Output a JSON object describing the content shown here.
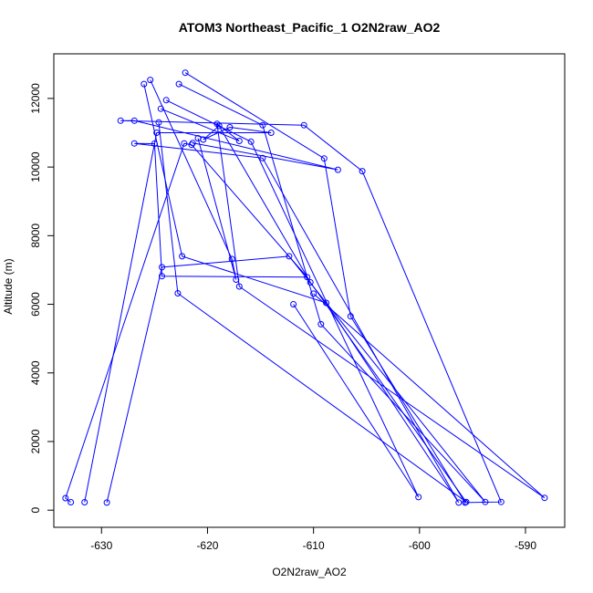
{
  "chart_data": {
    "type": "line",
    "title": "ATOM3 Northeast_Pacific_1 O2N2raw_AO2",
    "xlabel": "O2N2raw_AO2",
    "ylabel": "Altitude (m)",
    "xlim": [
      -634.5,
      -586.3
    ],
    "ylim": [
      -500,
      13300
    ],
    "x_ticks": [
      -630,
      -620,
      -610,
      -600,
      -590
    ],
    "x_tick_labels": [
      "-630",
      "-620",
      "-610",
      "-600",
      "-590"
    ],
    "y_ticks": [
      0,
      2000,
      4000,
      6000,
      8000,
      10000,
      12000
    ],
    "y_tick_labels": [
      "0",
      "2000",
      "4000",
      "6000",
      "8000",
      "10000",
      "12000"
    ],
    "grid": false,
    "series_color": "#0000ff",
    "marker": "open-circle",
    "series": [
      {
        "x": [
          -622.1,
          -609.0,
          -606.5,
          -595.7,
          -592.3,
          -605.4,
          -610.9,
          -628.2,
          -626.9,
          -607.7,
          -621.4
        ],
        "y": [
          12750,
          10250,
          5650,
          220,
          240,
          9880,
          11220,
          11350,
          11350,
          9920,
          10700
        ]
      },
      {
        "x": [
          -623.9,
          -615.9,
          -600.1,
          -611.9
        ],
        "y": [
          11950,
          10740,
          380,
          6000
        ]
      },
      {
        "x": [
          -625.4,
          -617.7,
          -617.3,
          -620.9
        ],
        "y": [
          12540,
          7320,
          6720,
          10840
        ]
      },
      {
        "x": [
          -626.0,
          -622.4,
          -608.8,
          -596.3,
          -614.8,
          -626.9,
          -625.0,
          -624.3,
          -610.6,
          -621.5,
          -622.2,
          -633.4,
          -632.9
        ],
        "y": [
          12420,
          7400,
          6040,
          220,
          10260,
          10690,
          10680,
          6820,
          6790,
          10650,
          10690,
          350,
          230
        ]
      },
      {
        "x": [
          -622.7,
          -614.8,
          -609.3,
          -593.8,
          -612.3,
          -624.3,
          -629.5
        ],
        "y": [
          12420,
          11220,
          5420,
          240,
          7400,
          7080,
          220
        ]
      },
      {
        "x": [
          -624.6,
          -622.8,
          -595.6,
          -610.3,
          -618.9,
          -620.4,
          -617.9,
          -614.0,
          -624.8,
          -631.6
        ],
        "y": [
          11300,
          6320,
          240,
          6640,
          11200,
          10800,
          11160,
          11000,
          11000,
          230
        ]
      },
      {
        "x": [
          -610.0,
          -588.2,
          -617.0,
          -619.1,
          -617.0,
          -624.4
        ],
        "y": [
          6310,
          360,
          6520,
          11260,
          10760,
          11700
        ]
      }
    ]
  }
}
